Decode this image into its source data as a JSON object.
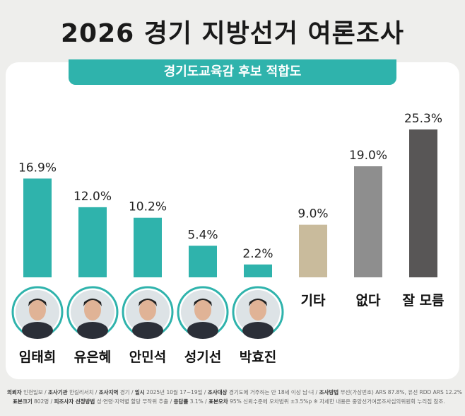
{
  "title": "2026 경기 지방선거 여론조사",
  "chart_data": {
    "type": "bar",
    "title": "경기도교육감 후보 적합도",
    "categories": [
      "임태희",
      "유은혜",
      "안민석",
      "성기선",
      "박효진",
      "기타",
      "없다",
      "잘 모름"
    ],
    "values": [
      16.9,
      12.0,
      10.2,
      5.4,
      2.2,
      9.0,
      19.0,
      25.3
    ],
    "value_labels": [
      "16.9%",
      "12.0%",
      "10.2%",
      "5.4%",
      "2.2%",
      "9.0%",
      "19.0%",
      "25.3%"
    ],
    "candidate_photo_count": 5,
    "colors": [
      "#2fb3ac",
      "#2fb3ac",
      "#2fb3ac",
      "#2fb3ac",
      "#2fb3ac",
      "#c9bb9c",
      "#8e8e8e",
      "#585656"
    ],
    "ylim": [
      0,
      27
    ],
    "grid": false
  },
  "footer": {
    "line1": [
      {
        "k": "의뢰자",
        "v": "인천일보"
      },
      {
        "k": "조사기관",
        "v": "한길리서치"
      },
      {
        "k": "조사지역",
        "v": "경기"
      },
      {
        "k": "일시",
        "v": "2025년 10월 17~19일"
      },
      {
        "k": "조사대상",
        "v": "경기도에 거주하는 만 18세 이상 남·녀"
      },
      {
        "k": "조사방법",
        "v": "무선(가상번호) ARS 87.8%, 유선 RDD ARS 12.2%"
      }
    ],
    "line2": [
      {
        "k": "표본크기",
        "v": "802명"
      },
      {
        "k": "피조사자 선정방법",
        "v": "성·연령·지역별 할당 무작위 추출"
      },
      {
        "k": "응답률",
        "v": "3.1%"
      },
      {
        "k": "표본오차",
        "v": "95% 신뢰수준에 오차범위 ±3.5%p"
      }
    ],
    "note": "※ 자세한 내용은 중앙선거여론조사심의위원회 누리집 참조."
  }
}
